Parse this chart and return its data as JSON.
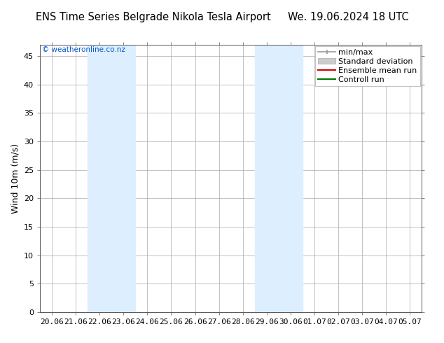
{
  "title_left": "ENS Time Series Belgrade Nikola Tesla Airport",
  "title_right": "We. 19.06.2024 18 UTC",
  "ylabel": "Wind 10m (m/s)",
  "xlabel_ticks": [
    "20.06",
    "21.06",
    "22.06",
    "23.06",
    "24.06",
    "25.06",
    "26.06",
    "27.06",
    "28.06",
    "29.06",
    "30.06",
    "01.07",
    "02.07",
    "03.07",
    "04.07",
    "05.07"
  ],
  "yticks": [
    0,
    5,
    10,
    15,
    20,
    25,
    30,
    35,
    40,
    45
  ],
  "ymax": 47,
  "ymin": 0,
  "bg_color": "#ffffff",
  "plot_bg_color": "#ffffff",
  "shaded_regions": [
    {
      "xstart": 2,
      "xend": 4,
      "color": "#ddeeff"
    },
    {
      "xstart": 9,
      "xend": 11,
      "color": "#ddeeff"
    }
  ],
  "watermark": "© weatheronline.co.nz",
  "watermark_color": "#0055cc",
  "tick_color": "#555555",
  "grid_color": "#aaaaaa",
  "font_color": "#000000",
  "title_fontsize": 10.5,
  "label_fontsize": 9,
  "tick_fontsize": 8,
  "legend_fontsize": 8
}
